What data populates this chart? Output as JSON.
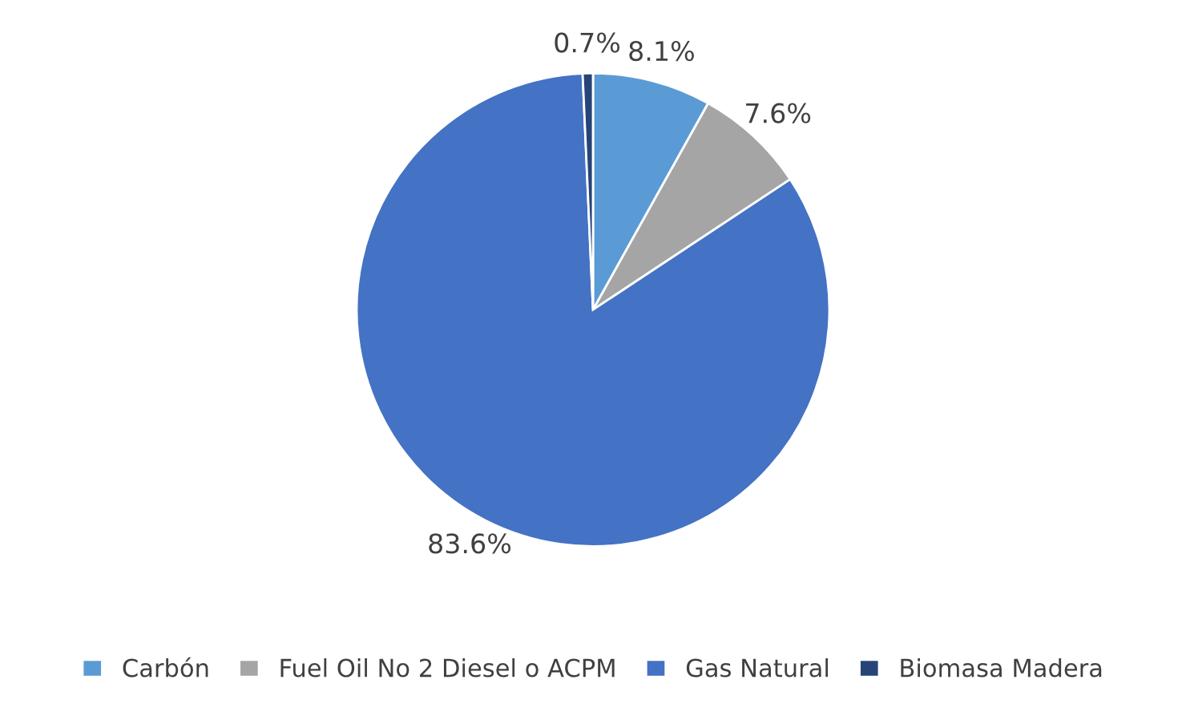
{
  "chart_data": {
    "type": "pie",
    "categories": [
      "Carbón",
      "Fuel Oil No 2 Diesel o ACPM",
      "Gas Natural",
      "Biomasa Madera"
    ],
    "values": [
      8.1,
      7.6,
      83.6,
      0.7
    ],
    "colors": [
      "#5b9bd5",
      "#a5a5a5",
      "#4472c4",
      "#264478"
    ],
    "value_labels": [
      "8.1%",
      "7.6%",
      "83.6%",
      "0.7%"
    ],
    "legend": "bottom"
  }
}
